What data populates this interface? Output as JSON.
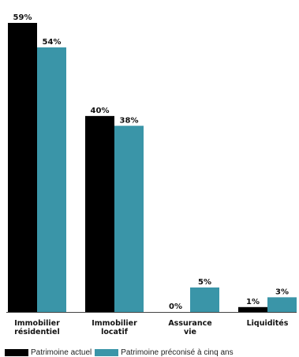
{
  "chart_data": {
    "type": "bar",
    "categories": [
      [
        "Immobilier",
        "résidentiel"
      ],
      [
        "Immobilier",
        "locatif"
      ],
      [
        "Assurance",
        "vie"
      ],
      [
        "Liquidités"
      ]
    ],
    "series": [
      {
        "name": "Patrimoine actuel",
        "values": [
          59,
          40,
          0,
          1
        ],
        "labels": [
          "59%",
          "40%",
          "0%",
          "1%"
        ]
      },
      {
        "name": "Patrimoine préconisé à cinq ans",
        "values": [
          54,
          38,
          5,
          3
        ],
        "labels": [
          "54%",
          "38%",
          "5%",
          "3%"
        ]
      }
    ],
    "ylim": [
      0,
      59
    ],
    "grid": false,
    "legend_position": "bottom-left",
    "colors": {
      "series": [
        "#000000",
        "#3a95a8"
      ],
      "baseline": "#444444"
    }
  }
}
